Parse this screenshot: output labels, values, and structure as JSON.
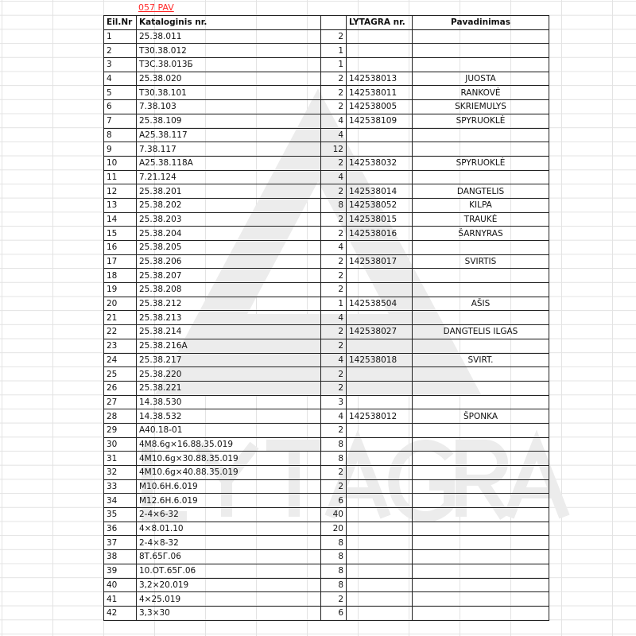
{
  "sheet_title": "057 PAV",
  "watermark": "LYTAGRA",
  "colors": {
    "title": "#ff2a2a",
    "grid": "#e3e3e3",
    "border": "#222222"
  },
  "headers": [
    "Eil.Nr",
    "Kataloginis nr.",
    "",
    "LYTAGRA nr.",
    "Pavadinimas"
  ],
  "rows": [
    [
      "1",
      "25.38.011",
      "2",
      "",
      ""
    ],
    [
      "2",
      "Т30.38.012",
      "1",
      "",
      ""
    ],
    [
      "3",
      "Т3С.38.013Б",
      "1",
      "",
      ""
    ],
    [
      "4",
      "25.38.020",
      "2",
      "142538013",
      "JUOSTA"
    ],
    [
      "5",
      "Т30.38.101",
      "2",
      "142538011",
      "RANKOVĖ"
    ],
    [
      "6",
      "7.38.103",
      "2",
      "142538005",
      "SKRIEMULYS"
    ],
    [
      "7",
      "25.38.109",
      "4",
      "142538109",
      "SPYRUOKLĖ"
    ],
    [
      "8",
      "А25.38.117",
      "4",
      "",
      ""
    ],
    [
      "9",
      "7.38.117",
      "12",
      "",
      ""
    ],
    [
      "10",
      "А25.38.118А",
      "2",
      "142538032",
      "SPYRUOKLĖ"
    ],
    [
      "11",
      "7.21.124",
      "4",
      "",
      ""
    ],
    [
      "12",
      "25.38.201",
      "2",
      "142538014",
      "DANGTELIS"
    ],
    [
      "13",
      "25.38.202",
      "8",
      "142538052",
      "KILPA"
    ],
    [
      "14",
      "25.38.203",
      "2",
      "142538015",
      "TRAUKĖ"
    ],
    [
      "15",
      "25.38.204",
      "2",
      "142538016",
      "ŠARNYRAS"
    ],
    [
      "16",
      "25.38.205",
      "4",
      "",
      ""
    ],
    [
      "17",
      "25.38.206",
      "2",
      "142538017",
      "SVIRTIS"
    ],
    [
      "18",
      "25.38.207",
      "2",
      "",
      ""
    ],
    [
      "19",
      "25.38.208",
      "2",
      "",
      ""
    ],
    [
      "20",
      "25.38.212",
      "1",
      "142538504",
      "AŠIS"
    ],
    [
      "21",
      "25.38.213",
      "4",
      "",
      ""
    ],
    [
      "22",
      "25.38.214",
      "2",
      "142538027",
      "DANGTELIS ILGAS"
    ],
    [
      "23",
      "25.38.216А",
      "2",
      "",
      ""
    ],
    [
      "24",
      "25.38.217",
      "4",
      "142538018",
      "SVIRT."
    ],
    [
      "25",
      "25.38.220",
      "2",
      "",
      ""
    ],
    [
      "26",
      "25.38.221",
      "2",
      "",
      ""
    ],
    [
      "27",
      "14.38.530",
      "3",
      "",
      ""
    ],
    [
      "28",
      "14.38.532",
      "4",
      "142538012",
      "ŠPONKA"
    ],
    [
      "29",
      "А40.18-01",
      "2",
      "",
      ""
    ],
    [
      "30",
      "4М8.6g×16.88.35.019",
      "8",
      "",
      ""
    ],
    [
      "31",
      "4М10.6g×30.88.35.019",
      "8",
      "",
      ""
    ],
    [
      "32",
      "4М10.6g×40.88.35.019",
      "2",
      "",
      ""
    ],
    [
      "33",
      "М10.6Н.6.019",
      "2",
      "",
      ""
    ],
    [
      "34",
      "М12.6Н.6.019",
      "6",
      "",
      ""
    ],
    [
      "35",
      "2-4×6-32",
      "40",
      "",
      ""
    ],
    [
      "36",
      "4×8.01.10",
      "20",
      "",
      ""
    ],
    [
      "37",
      "2-4×8-32",
      "8",
      "",
      ""
    ],
    [
      "38",
      "8Т.65Г.06",
      "8",
      "",
      ""
    ],
    [
      "39",
      "10.ОТ.65Г.06",
      "8",
      "",
      ""
    ],
    [
      "40",
      "3,2×20.019",
      "8",
      "",
      ""
    ],
    [
      "41",
      "4×25.019",
      "2",
      "",
      ""
    ],
    [
      "42",
      "3,3×30",
      "6",
      "",
      ""
    ]
  ]
}
